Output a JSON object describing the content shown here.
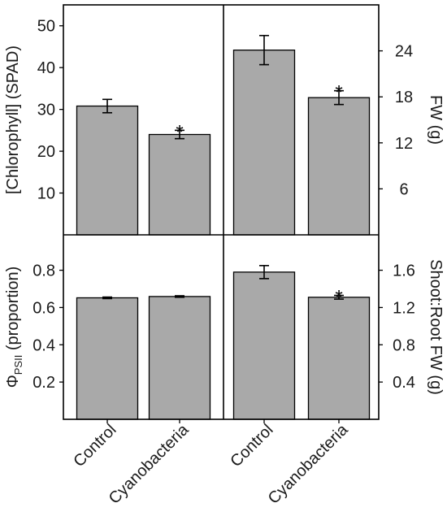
{
  "colors": {
    "bar_fill": "#a9a9a9",
    "bar_stroke": "#000000",
    "frame": "#000000"
  },
  "chart_data": [
    {
      "panel": "top-left",
      "type": "bar",
      "categories": [
        "Control",
        "Cyanobacteria"
      ],
      "values": [
        30.8,
        24.0
      ],
      "errors": [
        1.6,
        1.0
      ],
      "significant": [
        "",
        "*"
      ],
      "ylabel": "[Chlorophyll] (SPAD)",
      "ylim": [
        0,
        55
      ],
      "yticks": [
        10,
        20,
        30,
        40,
        50
      ],
      "axis_side": "left"
    },
    {
      "panel": "top-right",
      "type": "bar",
      "categories": [
        "Control",
        "Cyanobacteria"
      ],
      "values": [
        24.1,
        17.9
      ],
      "errors": [
        1.9,
        0.9
      ],
      "significant": [
        "",
        "*"
      ],
      "ylabel": "FW (g)",
      "ylim": [
        0,
        30
      ],
      "yticks": [
        6,
        12,
        18,
        24
      ],
      "axis_side": "right"
    },
    {
      "panel": "bottom-left",
      "type": "bar",
      "categories": [
        "Control",
        "Cyanobacteria"
      ],
      "values": [
        0.652,
        0.659
      ],
      "errors": [
        0.004,
        0.004
      ],
      "significant": [
        "",
        ""
      ],
      "ylabel_main": "Φ",
      "ylabel_sub": "PSII",
      "ylabel_rest": " (proportion)",
      "ylim": [
        0,
        0.99
      ],
      "yticks": [
        0.2,
        0.4,
        0.6,
        0.8
      ],
      "axis_side": "left"
    },
    {
      "panel": "bottom-right",
      "type": "bar",
      "categories": [
        "Control",
        "Cyanobacteria"
      ],
      "values": [
        1.58,
        1.31
      ],
      "errors": [
        0.07,
        0.02
      ],
      "significant": [
        "",
        "*"
      ],
      "ylabel": "Shoot:Root FW (g)",
      "ylim": [
        0,
        1.98
      ],
      "yticks": [
        0.4,
        0.8,
        1.2,
        1.6
      ],
      "axis_side": "right"
    }
  ]
}
